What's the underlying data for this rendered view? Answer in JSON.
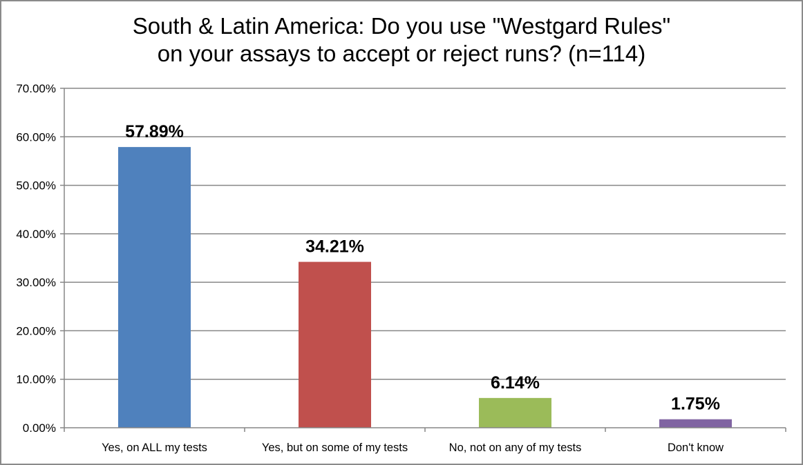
{
  "chart_data": {
    "type": "bar",
    "title_lines": [
      "South & Latin America: Do you use \"Westgard Rules\"",
      "on your assays to accept or reject runs? (n=114)"
    ],
    "categories": [
      "Yes, on ALL my tests",
      "Yes, but on  some of my tests",
      "No, not on any of my tests",
      "Don't know"
    ],
    "values": [
      57.89,
      34.21,
      6.14,
      1.75
    ],
    "data_labels": [
      "57.89%",
      "34.21%",
      "6.14%",
      "1.75%"
    ],
    "colors": [
      "#4f81bd",
      "#c0504d",
      "#9bbb59",
      "#8064a2"
    ],
    "yticks": [
      "0.00%",
      "10.00%",
      "20.00%",
      "30.00%",
      "40.00%",
      "50.00%",
      "60.00%",
      "70.00%"
    ],
    "ylim": [
      0,
      70
    ],
    "grid": true,
    "legend": "none",
    "xlabel": "",
    "ylabel": ""
  }
}
